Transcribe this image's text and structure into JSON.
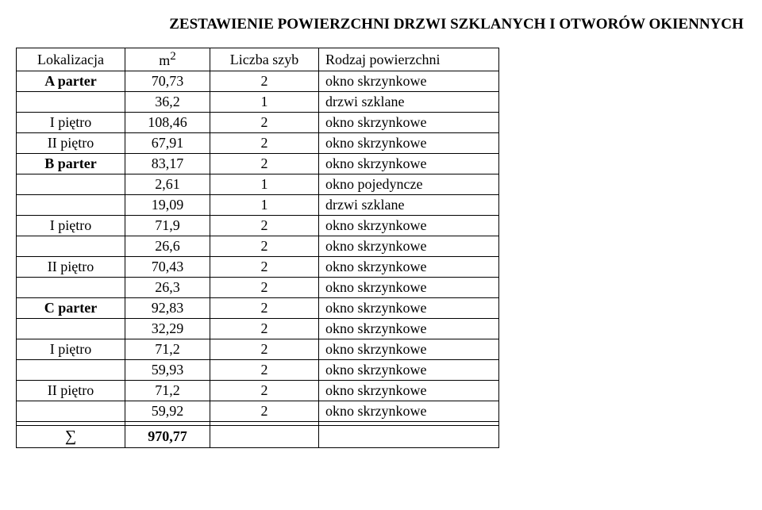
{
  "title": "ZESTAWIENIE POWIERZCHNI DRZWI SZKLANYCH I OTWORÓW OKIENNYCH",
  "headers": {
    "lokalizacja": "Lokalizacja",
    "m2": "m",
    "m2_exp": "2",
    "liczba_szyb": "Liczba szyb",
    "rodzaj": "Rodzaj powierzchni"
  },
  "rows": [
    {
      "lok": "A parter",
      "bold_lok": true,
      "m2": "70,73",
      "szyb": "2",
      "rodzaj": "okno skrzynkowe"
    },
    {
      "lok": "",
      "bold_lok": false,
      "m2": "36,2",
      "szyb": "1",
      "rodzaj": "drzwi szklane"
    },
    {
      "lok": "I piętro",
      "bold_lok": false,
      "m2": "108,46",
      "szyb": "2",
      "rodzaj": "okno skrzynkowe"
    },
    {
      "lok": "II piętro",
      "bold_lok": false,
      "m2": "67,91",
      "szyb": "2",
      "rodzaj": "okno skrzynkowe"
    },
    {
      "lok": "B parter",
      "bold_lok": true,
      "m2": "83,17",
      "szyb": "2",
      "rodzaj": "okno skrzynkowe"
    },
    {
      "lok": "",
      "bold_lok": false,
      "m2": "2,61",
      "szyb": "1",
      "rodzaj": "okno pojedyncze"
    },
    {
      "lok": "",
      "bold_lok": false,
      "m2": "19,09",
      "szyb": "1",
      "rodzaj": "drzwi szklane"
    },
    {
      "lok": "I piętro",
      "bold_lok": false,
      "m2": "71,9",
      "szyb": "2",
      "rodzaj": "okno skrzynkowe"
    },
    {
      "lok": "",
      "bold_lok": false,
      "m2": "26,6",
      "szyb": "2",
      "rodzaj": "okno skrzynkowe"
    },
    {
      "lok": "II piętro",
      "bold_lok": false,
      "m2": "70,43",
      "szyb": "2",
      "rodzaj": "okno skrzynkowe"
    },
    {
      "lok": "",
      "bold_lok": false,
      "m2": "26,3",
      "szyb": "2",
      "rodzaj": "okno skrzynkowe"
    },
    {
      "lok": "C parter",
      "bold_lok": true,
      "m2": "92,83",
      "szyb": "2",
      "rodzaj": "okno skrzynkowe"
    },
    {
      "lok": "",
      "bold_lok": false,
      "m2": "32,29",
      "szyb": "2",
      "rodzaj": "okno skrzynkowe"
    },
    {
      "lok": "I piętro",
      "bold_lok": false,
      "m2": "71,2",
      "szyb": "2",
      "rodzaj": "okno skrzynkowe"
    },
    {
      "lok": "",
      "bold_lok": false,
      "m2": "59,93",
      "szyb": "2",
      "rodzaj": "okno skrzynkowe"
    },
    {
      "lok": "II piętro",
      "bold_lok": false,
      "m2": "71,2",
      "szyb": "2",
      "rodzaj": "okno skrzynkowe"
    },
    {
      "lok": "",
      "bold_lok": false,
      "m2": "59,92",
      "szyb": "2",
      "rodzaj": "okno skrzynkowe"
    },
    {
      "lok": "",
      "bold_lok": false,
      "m2": "",
      "szyb": "",
      "rodzaj": ""
    }
  ],
  "sum": {
    "symbol": "∑",
    "value": "970,77",
    "szyb": "",
    "rodzaj": ""
  }
}
